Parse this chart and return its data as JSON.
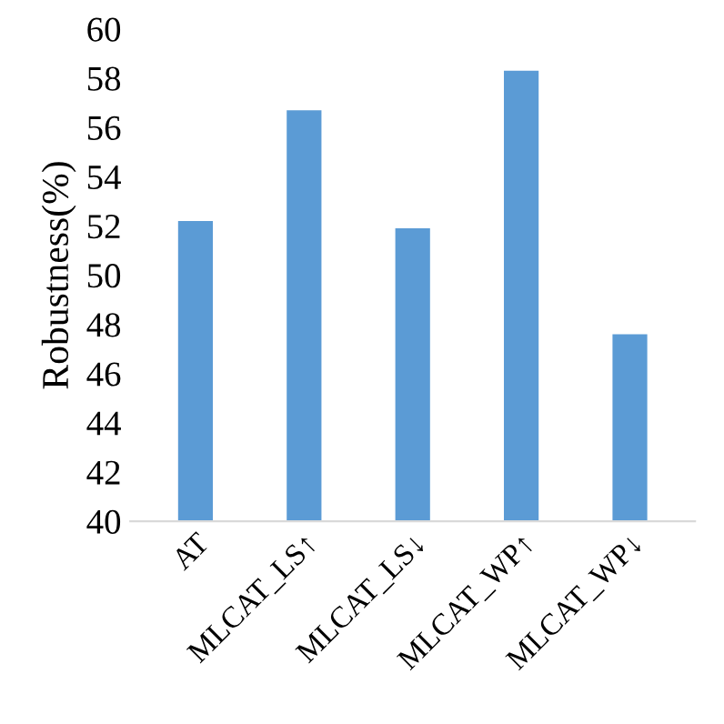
{
  "chart_data": {
    "type": "bar",
    "ylabel": "Robustness(%)",
    "categories": [
      "AT",
      "MLCAT_LS↑",
      "MLCAT_LS↓",
      "MLCAT_WP↑",
      "MLCAT_WP↓"
    ],
    "values": [
      52.2,
      56.7,
      51.9,
      58.3,
      47.6
    ],
    "color": "#5b9bd5",
    "ylim": [
      40,
      60
    ],
    "yticks": [
      40,
      42,
      44,
      46,
      48,
      50,
      52,
      54,
      56,
      58,
      60
    ],
    "grid": false
  }
}
